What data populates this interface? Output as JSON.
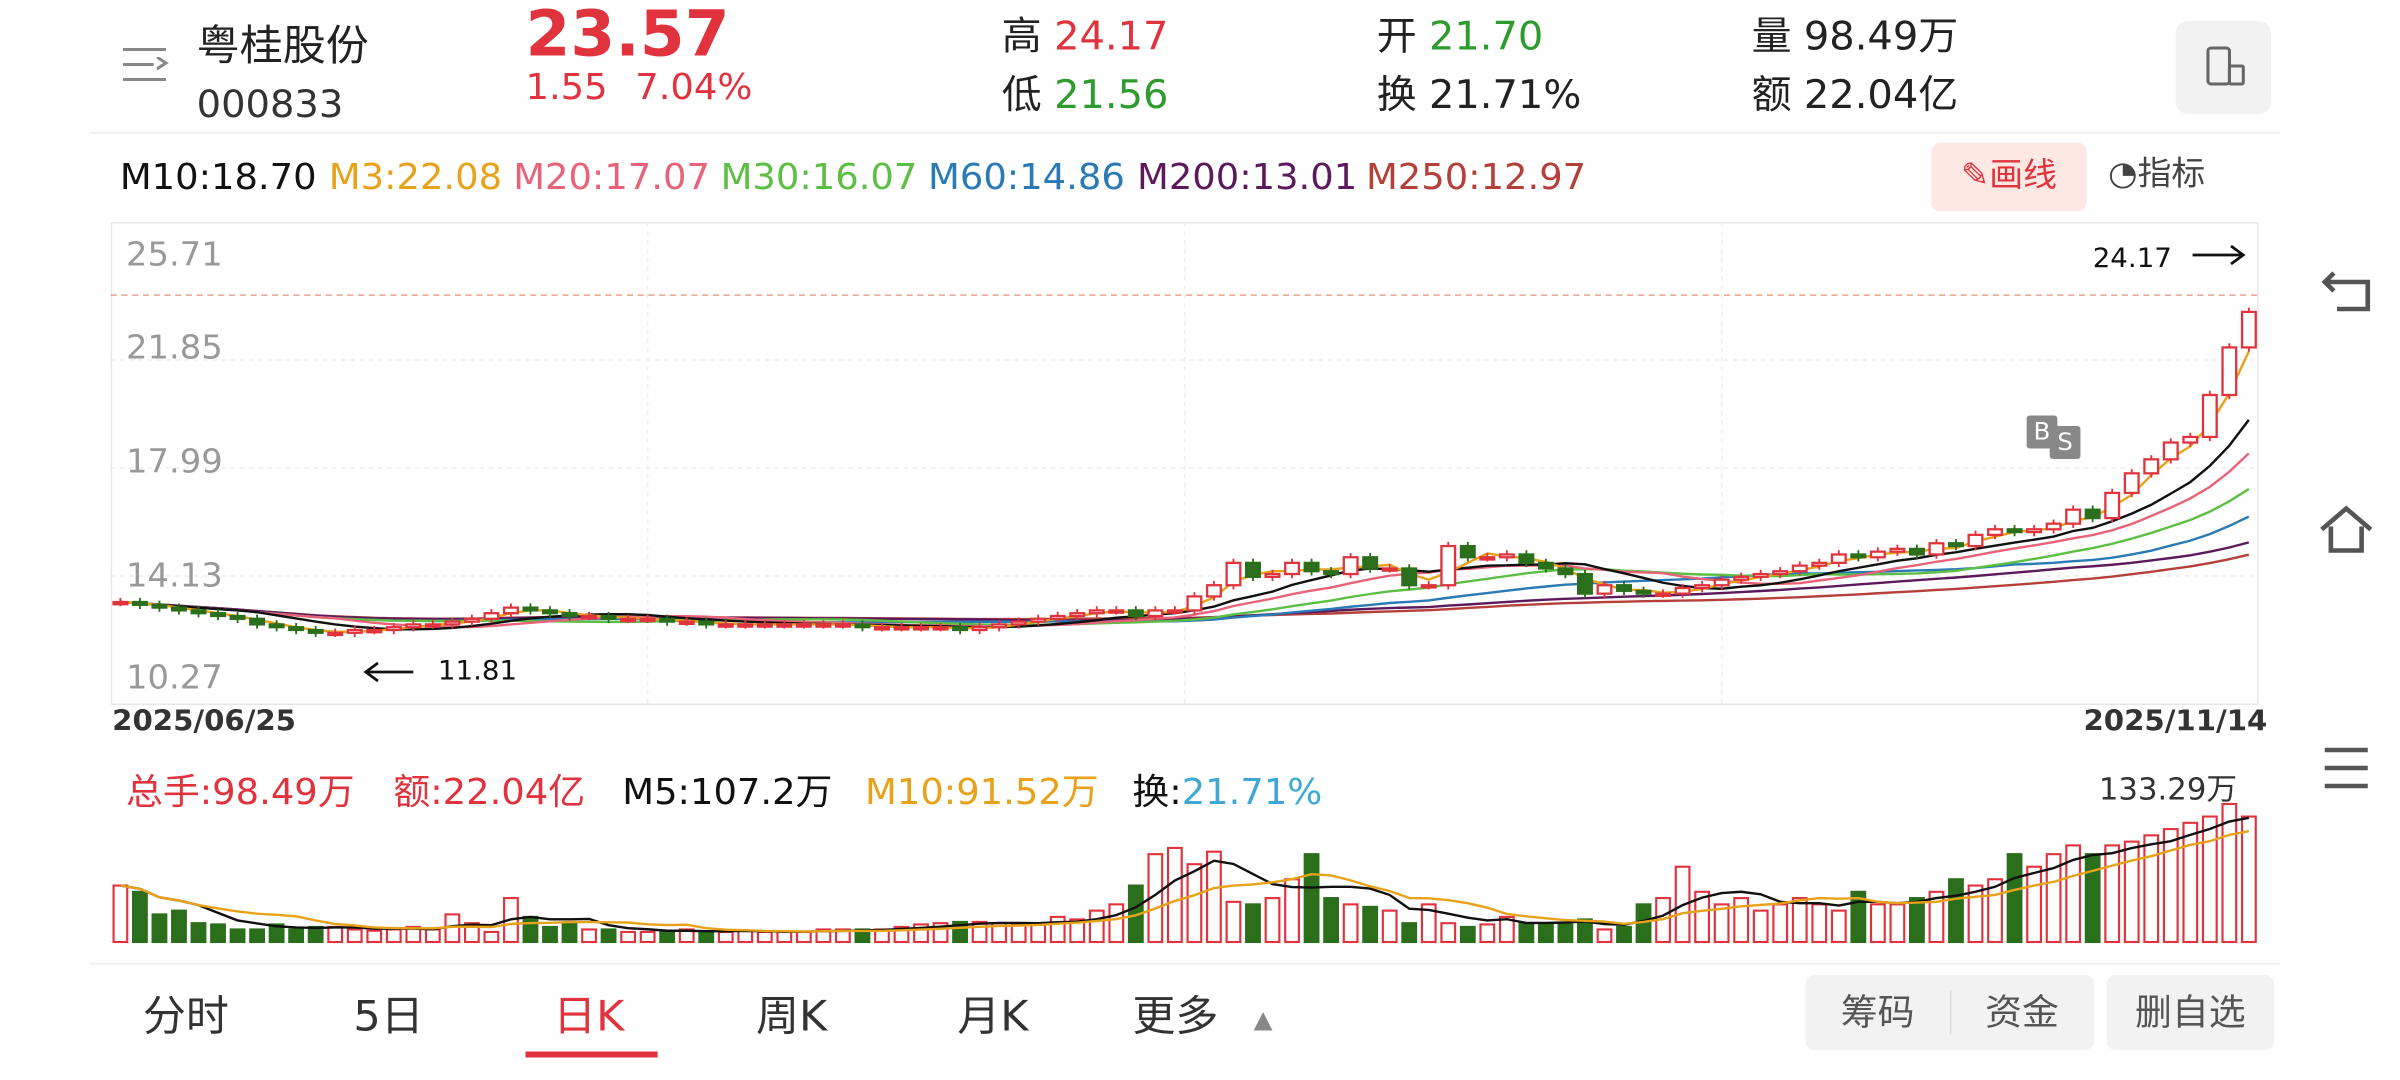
{
  "header": {
    "name": "粤桂股份",
    "code": "000833",
    "price": "23.57",
    "change": "1.55",
    "change_pct": "7.04%",
    "high_label": "高",
    "high": "24.17",
    "low_label": "低",
    "low": "21.56",
    "open_label": "开",
    "open": "21.70",
    "turnover_label": "换",
    "turnover": "21.71%",
    "volume_label": "量",
    "volume": "98.49万",
    "amount_label": "额",
    "amount": "22.04亿"
  },
  "ma_bar": {
    "m10": "M10:18.70",
    "m3": "M3:22.08",
    "m20": "M20:17.07",
    "m30": "M30:16.07",
    "m60": "M60:14.86",
    "m200": "M200:13.01",
    "m250": "M250:12.97",
    "draw_label": "画线",
    "indicator_label": "指标"
  },
  "colors": {
    "up": "#e0333d",
    "down": "#2b6e1b",
    "m10": "#111111",
    "m3": "#e8a21a",
    "m20": "#e8637a",
    "m30": "#5cbf43",
    "m60": "#2a7ab5",
    "m200": "#5c1a5c",
    "m250": "#b5403a"
  },
  "price_chart": {
    "y_ticks": [
      "25.71",
      "21.85",
      "17.99",
      "14.13",
      "10.27"
    ],
    "start_date": "2025/06/25",
    "end_date": "2025/11/14",
    "max_label": "24.17",
    "min_label": "11.81",
    "marker_b": "B",
    "marker_s": "S"
  },
  "volume_chart": {
    "total_label": "总手:98.49万",
    "amount_label": "额:22.04亿",
    "m5_label": "M5:107.2万",
    "m10_label": "M10:91.52万",
    "turnover_prefix": "换:",
    "turnover_value": "21.71%",
    "max_label": "133.29万"
  },
  "tabs": [
    {
      "label": "分时"
    },
    {
      "label": "5日"
    },
    {
      "label": "日K"
    },
    {
      "label": "周K"
    },
    {
      "label": "月K"
    },
    {
      "label": "更多"
    }
  ],
  "bottom_buttons": {
    "chips": "筹码",
    "funds": "资金",
    "remove": "删自选"
  },
  "chart_data": {
    "type": "candlestick",
    "y_range": [
      10.27,
      25.71
    ],
    "x_range": [
      "2025/06/25",
      "2025/11/14"
    ],
    "closes": [
      13.2,
      13.1,
      13.0,
      12.9,
      12.8,
      12.7,
      12.6,
      12.4,
      12.3,
      12.2,
      12.1,
      12.1,
      12.2,
      12.2,
      12.3,
      12.4,
      12.4,
      12.5,
      12.6,
      12.8,
      13.0,
      12.9,
      12.8,
      12.7,
      12.7,
      12.6,
      12.6,
      12.6,
      12.5,
      12.5,
      12.4,
      12.4,
      12.4,
      12.4,
      12.4,
      12.4,
      12.4,
      12.4,
      12.3,
      12.3,
      12.3,
      12.3,
      12.3,
      12.2,
      12.3,
      12.4,
      12.5,
      12.6,
      12.7,
      12.8,
      12.9,
      12.9,
      12.7,
      12.9,
      12.9,
      13.4,
      13.8,
      14.6,
      14.1,
      14.2,
      14.6,
      14.3,
      14.2,
      14.8,
      14.4,
      14.4,
      13.8,
      13.8,
      15.2,
      14.8,
      14.8,
      14.9,
      14.6,
      14.4,
      14.2,
      13.5,
      13.8,
      13.6,
      13.5,
      13.5,
      13.7,
      13.8,
      14.0,
      14.1,
      14.2,
      14.3,
      14.5,
      14.6,
      14.9,
      14.8,
      15.0,
      15.1,
      14.9,
      15.3,
      15.2,
      15.6,
      15.8,
      15.7,
      15.8,
      16.0,
      16.5,
      16.2,
      17.1,
      17.8,
      18.3,
      18.9,
      19.1,
      20.6,
      22.3,
      23.57
    ],
    "volumes": [
      45,
      40,
      22,
      25,
      15,
      14,
      10,
      10,
      14,
      10,
      12,
      12,
      10,
      9,
      10,
      12,
      10,
      22,
      15,
      8,
      35,
      20,
      12,
      15,
      10,
      10,
      8,
      8,
      9,
      10,
      8,
      8,
      9,
      8,
      8,
      8,
      10,
      10,
      10,
      10,
      12,
      14,
      15,
      16,
      16,
      15,
      14,
      14,
      20,
      18,
      25,
      30,
      45,
      70,
      75,
      62,
      72,
      32,
      30,
      35,
      50,
      70,
      35,
      30,
      28,
      25,
      15,
      30,
      15,
      12,
      14,
      20,
      15,
      15,
      14,
      18,
      10,
      12,
      30,
      35,
      60,
      40,
      30,
      35,
      25,
      30,
      35,
      30,
      25,
      40,
      30,
      30,
      35,
      40,
      50,
      45,
      50,
      70,
      60,
      70,
      77,
      70,
      77,
      80,
      85,
      90,
      95,
      100,
      110,
      100
    ]
  }
}
